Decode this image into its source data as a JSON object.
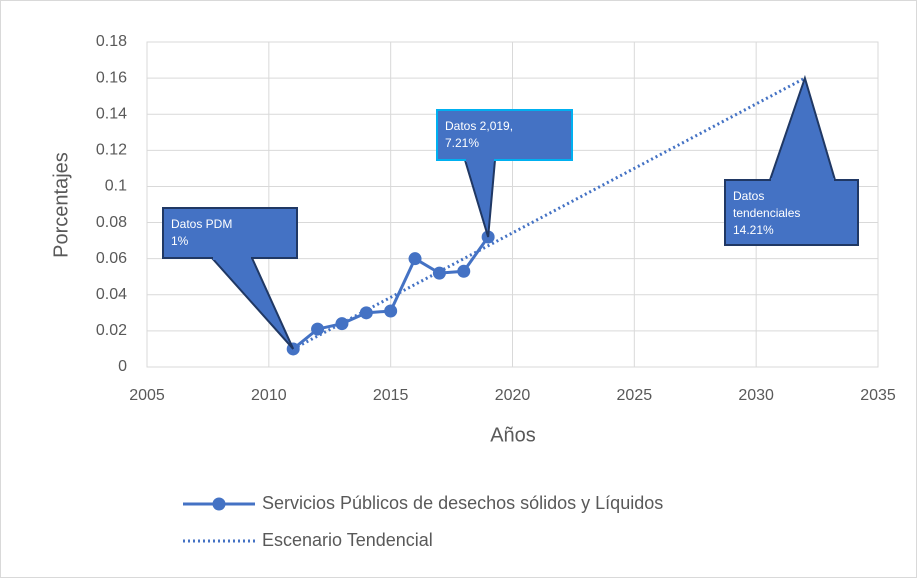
{
  "chart_data": {
    "type": "line",
    "x_label": "Años",
    "y_label": "Porcentajes",
    "xlim": [
      2005,
      2035
    ],
    "xticks": [
      2005,
      2010,
      2015,
      2020,
      2025,
      2030,
      2035
    ],
    "ylim": [
      0,
      0.18
    ],
    "yticks": [
      0,
      0.02,
      0.04,
      0.06,
      0.08,
      0.1,
      0.12,
      0.14,
      0.16,
      0.18
    ],
    "grid": true,
    "legend": "bottom",
    "series": [
      {
        "name": "Servicios Públicos de desechos sólidos y Líquidos",
        "color": "#4472c4",
        "style": "solid",
        "marker": "circle",
        "x": [
          2011,
          2012,
          2013,
          2014,
          2015,
          2016,
          2017,
          2018,
          2019
        ],
        "values": [
          0.01,
          0.021,
          0.024,
          0.03,
          0.031,
          0.06,
          0.052,
          0.053,
          0.072
        ]
      },
      {
        "name": "Escenario Tendencial",
        "color": "#4472c4",
        "style": "dotted",
        "x": [
          2011,
          2032
        ],
        "values": [
          0.01,
          0.16
        ]
      }
    ],
    "annotations": [
      {
        "lines": [
          "Datos PDM",
          "1%"
        ]
      },
      {
        "lines": [
          "Datos 2,019,",
          "7.21%"
        ]
      },
      {
        "lines": [
          "Datos",
          "tendenciales",
          "14.21%"
        ]
      }
    ]
  }
}
